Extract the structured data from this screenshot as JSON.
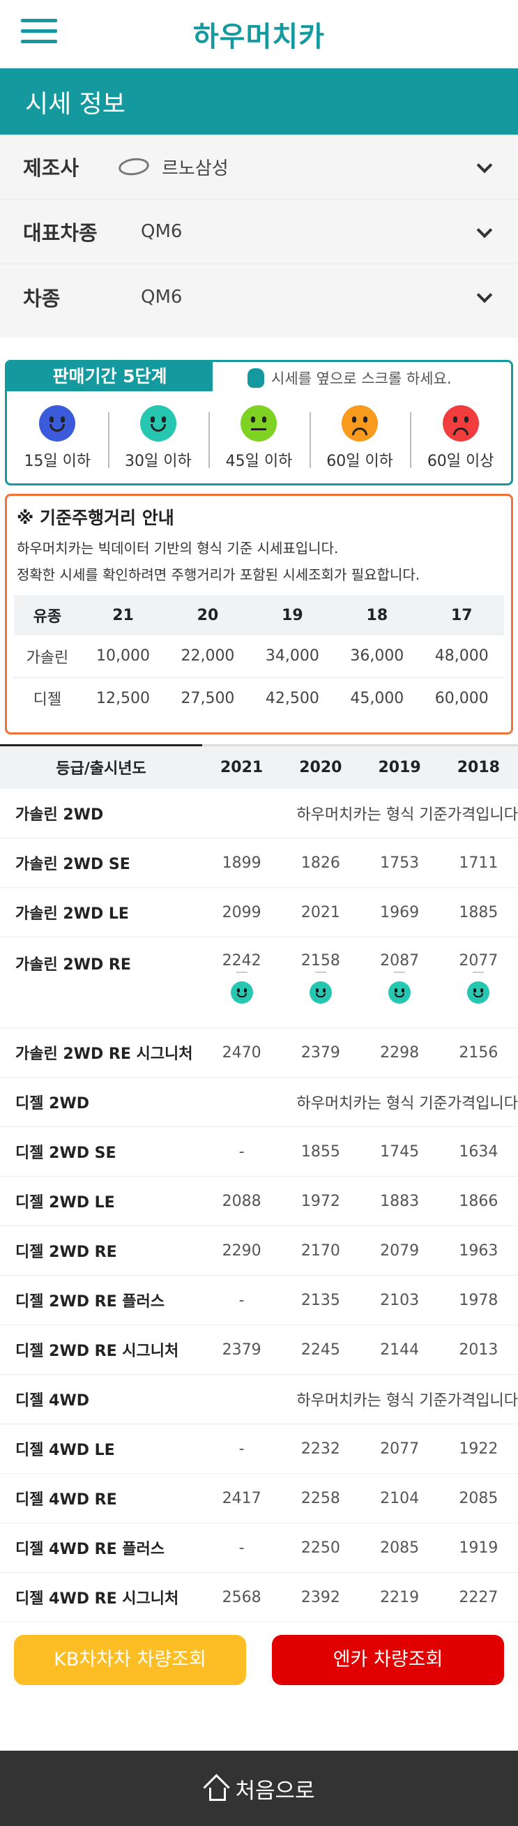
{
  "header": {
    "logo": "하우머치카",
    "menu_icon": "hamburger-menu-icon"
  },
  "page_title": "시세 정보",
  "filters": [
    {
      "label": "제조사",
      "value": "르노삼성"
    },
    {
      "label": "대표차종",
      "value": "QM6"
    },
    {
      "label": "차종",
      "value": "QM6"
    }
  ],
  "period": {
    "tab": "판매기간 5단계",
    "hint": "시세를 옆으로 스크롤 하세요.",
    "stages": [
      {
        "label": "15일 이하",
        "color": "#3b5bdb"
      },
      {
        "label": "30일 이하",
        "color": "#26c6b0"
      },
      {
        "label": "45일 이하",
        "color": "#7fd122"
      },
      {
        "label": "60일 이하",
        "color": "#f79a1e"
      },
      {
        "label": "60일 이상",
        "color": "#f03e3e"
      }
    ]
  },
  "mileage": {
    "title": "※ 기준주행거리 안내",
    "desc1": "하우머치카는 빅데이터 기반의 형식 기준 시세표입니다.",
    "desc2": "정확한 시세를 확인하려면 주행거리가 포함된 시세조회가 필요합니다.",
    "headers": [
      "유종",
      "21",
      "20",
      "19",
      "18",
      "17"
    ],
    "rows": [
      [
        "가솔린",
        "10,000",
        "22,000",
        "34,000",
        "36,000",
        "48,000"
      ],
      [
        "디젤",
        "12,500",
        "27,500",
        "42,500",
        "45,000",
        "60,000"
      ]
    ]
  },
  "prices": {
    "headers": [
      "등급/출시년도",
      "2021",
      "2020",
      "2019",
      "2018"
    ],
    "note": "하우머치카는 형식 기준가격입니다",
    "rows": [
      {
        "name": "가솔린 2WD",
        "note": true
      },
      {
        "name": "가솔린 2WD SE",
        "v": [
          "1899",
          "1826",
          "1753",
          "1711"
        ]
      },
      {
        "name": "가솔린 2WD LE",
        "v": [
          "2099",
          "2021",
          "1969",
          "1885"
        ]
      },
      {
        "name": "가솔린 2WD RE",
        "v": [
          "2242",
          "2158",
          "2087",
          "2077"
        ],
        "faces": true
      },
      {
        "name": "가솔린 2WD RE 시그니처",
        "v": [
          "2470",
          "2379",
          "2298",
          "2156"
        ]
      },
      {
        "name": "디젤 2WD",
        "note": true
      },
      {
        "name": "디젤 2WD SE",
        "v": [
          "-",
          "1855",
          "1745",
          "1634"
        ]
      },
      {
        "name": "디젤 2WD LE",
        "v": [
          "2088",
          "1972",
          "1883",
          "1866"
        ]
      },
      {
        "name": "디젤 2WD RE",
        "v": [
          "2290",
          "2170",
          "2079",
          "1963"
        ]
      },
      {
        "name": "디젤 2WD RE 플러스",
        "v": [
          "-",
          "2135",
          "2103",
          "1978"
        ]
      },
      {
        "name": "디젤 2WD RE 시그니처",
        "v": [
          "2379",
          "2245",
          "2144",
          "2013"
        ]
      },
      {
        "name": "디젤 4WD",
        "note": true
      },
      {
        "name": "디젤 4WD LE",
        "v": [
          "-",
          "2232",
          "2077",
          "1922"
        ]
      },
      {
        "name": "디젤 4WD RE",
        "v": [
          "2417",
          "2258",
          "2104",
          "2085"
        ]
      },
      {
        "name": "디젤 4WD RE 플러스",
        "v": [
          "-",
          "2250",
          "2085",
          "1919"
        ]
      },
      {
        "name": "디젤 4WD RE 시그니처",
        "v": [
          "2568",
          "2392",
          "2219",
          "2227"
        ]
      }
    ]
  },
  "buttons": {
    "kb": "KB차차차 차량조회",
    "encar": "엔카 차량조회"
  },
  "footer": {
    "home": "처음으로"
  }
}
